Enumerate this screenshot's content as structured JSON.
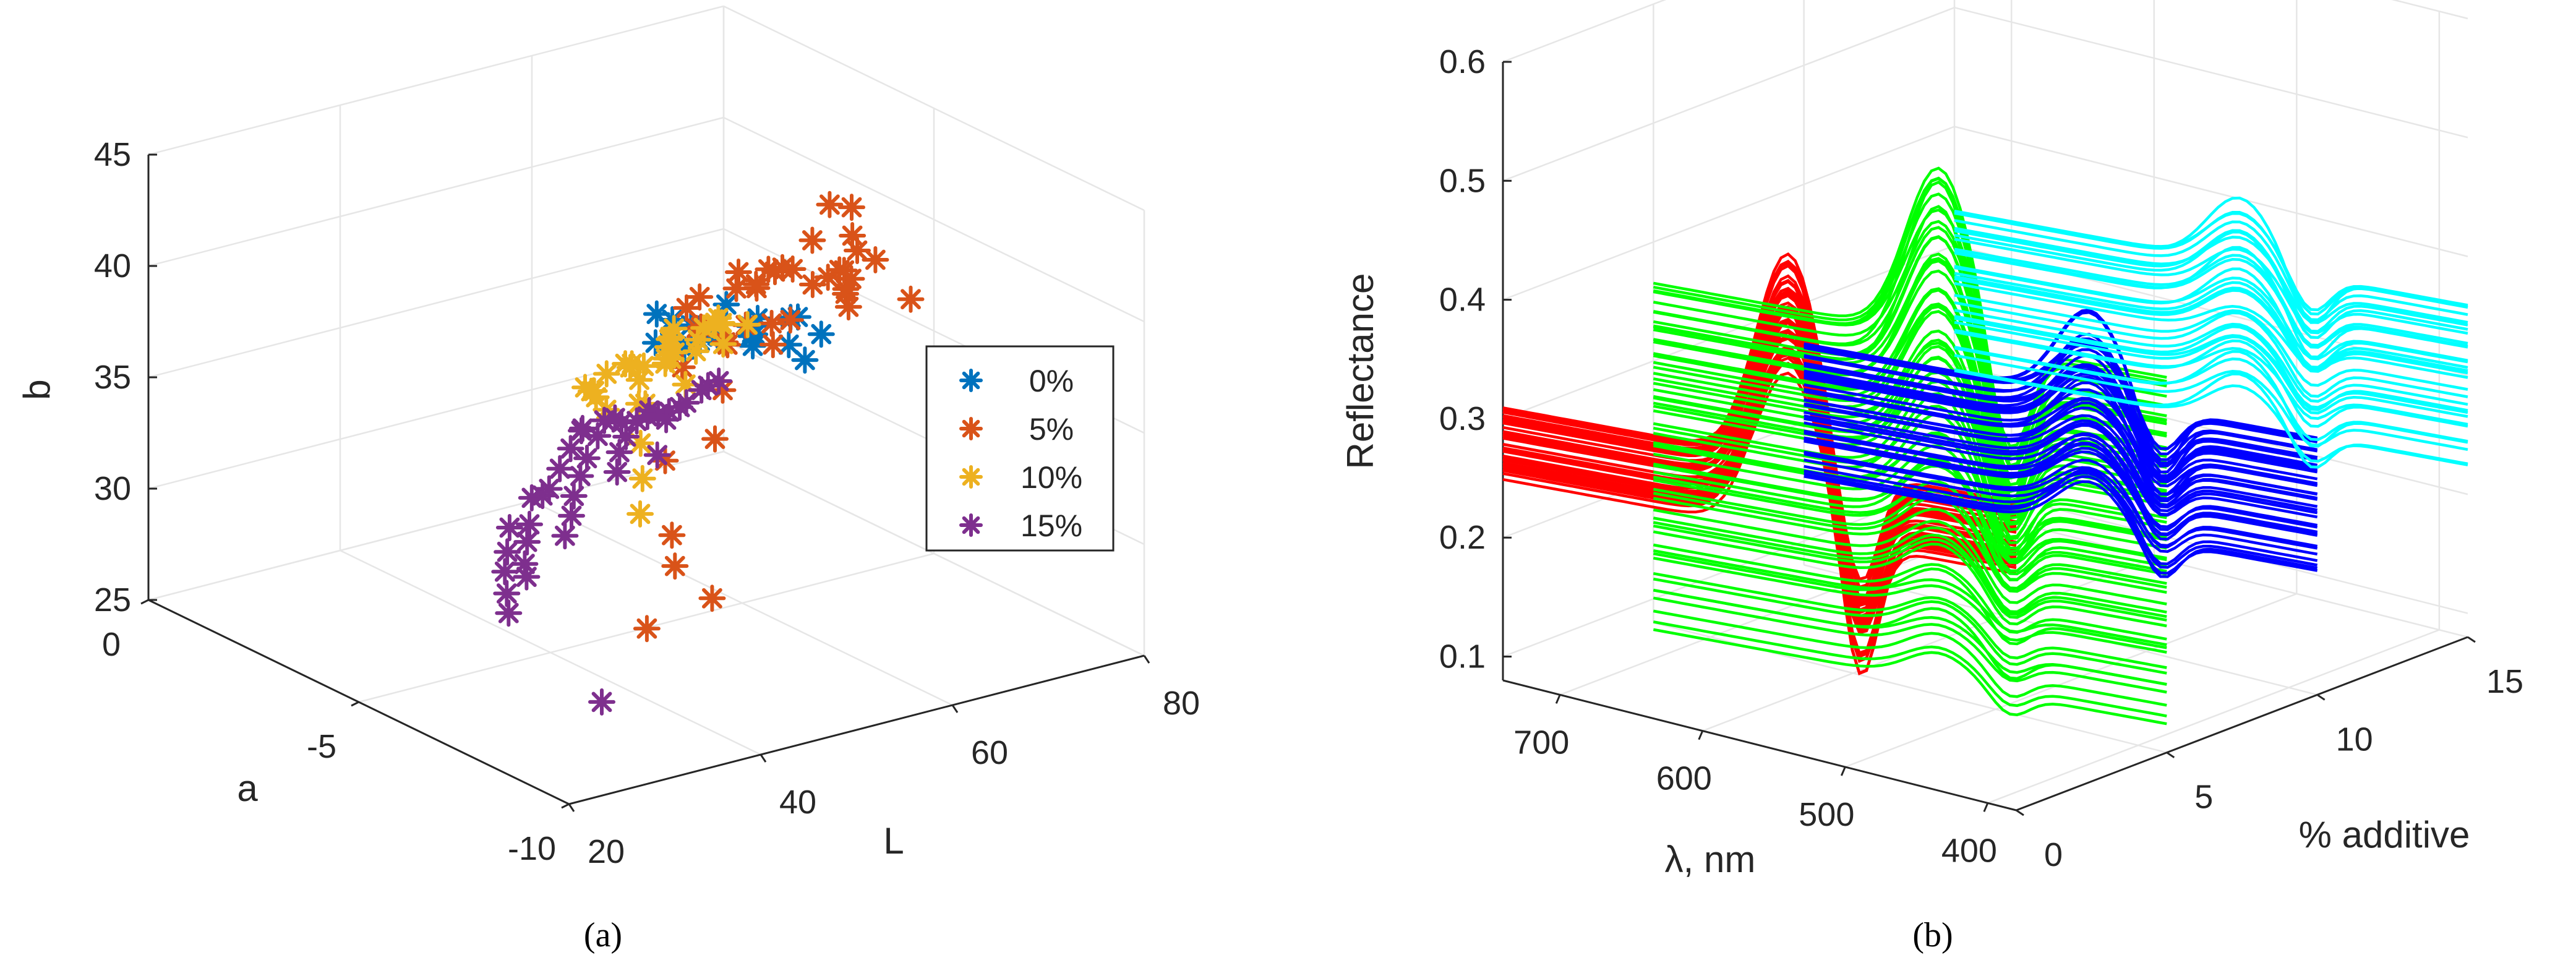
{
  "chart_data": [
    {
      "panel": "(a)",
      "type": "scatter3d",
      "xlabel": "L",
      "ylabel": "a",
      "zlabel": "b",
      "xlim": [
        20,
        80
      ],
      "ylim": [
        -10,
        0
      ],
      "zlim": [
        25,
        45
      ],
      "xticks": [
        "20",
        "40",
        "60",
        "80"
      ],
      "yticks": [
        "-10",
        "-5",
        "0"
      ],
      "zticks": [
        "25",
        "30",
        "35",
        "40",
        "45"
      ],
      "legend": {
        "position": "right-center",
        "entries": [
          "0%",
          "5%",
          "10%",
          "15%"
        ]
      },
      "series": [
        {
          "name": "0%",
          "color": "#0072BD",
          "points": [
            [
              64,
              -3.5,
              35.2
            ],
            [
              66,
              -3,
              34.8
            ],
            [
              68,
              -2.8,
              35.5
            ],
            [
              63,
              -2.6,
              34.2
            ],
            [
              67,
              -2.4,
              33.6
            ],
            [
              65,
              -2.2,
              34.6
            ],
            [
              62,
              -3.8,
              35.8
            ],
            [
              69,
              -3.2,
              33.9
            ],
            [
              70,
              -2.9,
              34.4
            ],
            [
              66,
              -4,
              36.2
            ],
            [
              64,
              -4.3,
              35.9
            ],
            [
              68,
              -4.5,
              36.5
            ],
            [
              71,
              -3.6,
              34.1
            ],
            [
              67,
              -3.7,
              35.1
            ],
            [
              63,
              -3.1,
              35.4
            ],
            [
              65,
              -1.8,
              33.2
            ],
            [
              72,
              -2.5,
              33.5
            ],
            [
              66,
              -1.6,
              34.2
            ],
            [
              69,
              -4.1,
              36
            ],
            [
              74,
              -3.3,
              32.8
            ],
            [
              70,
              -4.6,
              35.6
            ],
            [
              61,
              -3.4,
              34.8
            ]
          ]
        },
        {
          "name": "5%",
          "color": "#D95319",
          "points": [
            [
              55,
              -6,
              40.6
            ],
            [
              58,
              -5.8,
              40.1
            ],
            [
              60,
              -6.2,
              41.1
            ],
            [
              62,
              -5.5,
              40.3
            ],
            [
              66,
              -5.3,
              40.9
            ],
            [
              70,
              -4.8,
              41.6
            ],
            [
              64,
              -6.4,
              40.8
            ],
            [
              58,
              -6.6,
              39.4
            ],
            [
              56,
              -4.9,
              39.1
            ],
            [
              61,
              -5.1,
              39.3
            ],
            [
              67,
              -6,
              39.7
            ],
            [
              72,
              -5,
              39.5
            ],
            [
              75,
              -4.2,
              39.1
            ],
            [
              78,
              -3.5,
              39.4
            ],
            [
              62,
              -7,
              40.5
            ],
            [
              64,
              -4,
              38.5
            ],
            [
              68,
              -3.8,
              38
            ],
            [
              70,
              -3.5,
              37.4
            ],
            [
              73,
              -4.5,
              37.2
            ],
            [
              77,
              -2.8,
              35.4
            ],
            [
              52,
              -5.5,
              39.6
            ],
            [
              50,
              -6.3,
              39.7
            ],
            [
              47,
              -7.5,
              38.3
            ],
            [
              44,
              -8,
              36.9
            ],
            [
              41,
              -7.5,
              35.8
            ],
            [
              36,
              -8.8,
              34.2
            ],
            [
              35,
              -9.1,
              33.2
            ],
            [
              29,
              -9.8,
              31.7
            ],
            [
              38,
              -9.3,
              31.6
            ],
            [
              69,
              -2.6,
              33.4
            ],
            [
              67,
              -3,
              34.1
            ],
            [
              63,
              -4.4,
              36.6
            ],
            [
              59,
              -3.8,
              34.6
            ],
            [
              60,
              -5.7,
              38.2
            ],
            [
              57,
              -4.6,
              37.3
            ],
            [
              66,
              -6.8,
              41.4
            ],
            [
              61,
              -7.3,
              40.3
            ],
            [
              54,
              -7.1,
              39.2
            ],
            [
              71,
              -6.5,
              38.8
            ],
            [
              65,
              -5.9,
              39.9
            ],
            [
              68,
              -5.6,
              39.6
            ]
          ]
        },
        {
          "name": "10%",
          "color": "#EDB120",
          "points": [
            [
              48,
              -6,
              39.1
            ],
            [
              50,
              -5.6,
              38.6
            ],
            [
              52,
              -5.2,
              38.4
            ],
            [
              54,
              -5.8,
              39.2
            ],
            [
              56,
              -5,
              37.8
            ],
            [
              58,
              -4.8,
              37.5
            ],
            [
              46,
              -6.5,
              38.9
            ],
            [
              44,
              -6.2,
              37.9
            ],
            [
              42,
              -6.8,
              37.6
            ],
            [
              40,
              -7.1,
              38.1
            ],
            [
              38,
              -7.6,
              37
            ],
            [
              36,
              -8.1,
              36.1
            ],
            [
              34,
              -8.5,
              35.1
            ],
            [
              50,
              -4.5,
              36.4
            ],
            [
              52,
              -4.2,
              35.9
            ],
            [
              54,
              -4.6,
              36.8
            ],
            [
              56,
              -4.1,
              35.6
            ],
            [
              58,
              -4.4,
              36.5
            ],
            [
              60,
              -3.9,
              35.3
            ],
            [
              47,
              -5.3,
              37.3
            ],
            [
              49,
              -5.9,
              38.3
            ],
            [
              51,
              -6.6,
              39.1
            ],
            [
              53,
              -6.1,
              39.3
            ],
            [
              55,
              -5.5,
              38.6
            ],
            [
              57,
              -5.2,
              38.1
            ],
            [
              45,
              -4.9,
              36.1
            ],
            [
              43,
              -5.4,
              36.5
            ],
            [
              41,
              -6.1,
              36.8
            ],
            [
              48,
              -4,
              35.1
            ],
            [
              46,
              -4.6,
              35.7
            ],
            [
              52,
              -3.6,
              34.9
            ],
            [
              55,
              -3.8,
              35.1
            ],
            [
              59,
              -3.4,
              34.4
            ],
            [
              44,
              -7.3,
              38.7
            ],
            [
              61,
              -4.9,
              37.3
            ]
          ]
        },
        {
          "name": "15%",
          "color": "#7E2F8E",
          "points": [
            [
              50,
              -4,
              33.4
            ],
            [
              52,
              -3.8,
              33.1
            ],
            [
              54,
              -3.5,
              32.4
            ],
            [
              56,
              -3.7,
              32.9
            ],
            [
              48,
              -4.3,
              33.2
            ],
            [
              46,
              -4.5,
              32.6
            ],
            [
              44,
              -4.8,
              32.3
            ],
            [
              42,
              -5.1,
              31.9
            ],
            [
              40,
              -5.5,
              31.6
            ],
            [
              38,
              -5.8,
              31.2
            ],
            [
              47,
              -5.2,
              34.1
            ],
            [
              45,
              -5.5,
              33.9
            ],
            [
              43,
              -5.9,
              33.6
            ],
            [
              49,
              -5,
              34.4
            ],
            [
              51,
              -4.8,
              34.2
            ],
            [
              53,
              -4.6,
              33.9
            ],
            [
              55,
              -4.4,
              33.6
            ],
            [
              57,
              -4.2,
              33.4
            ],
            [
              59,
              -3.9,
              33.1
            ],
            [
              42,
              -4.1,
              30.9
            ],
            [
              44,
              -3.9,
              30.6
            ],
            [
              46,
              -3.6,
              30.4
            ],
            [
              48,
              -3.4,
              30.9
            ],
            [
              50,
              -3.2,
              31.4
            ],
            [
              52,
              -3,
              31.8
            ],
            [
              40,
              -4.5,
              30.3
            ],
            [
              38,
              -4.9,
              30.1
            ],
            [
              36,
              -5.3,
              29.7
            ],
            [
              34,
              -5.8,
              29.8
            ],
            [
              41,
              -3.8,
              29.4
            ],
            [
              39,
              -4.2,
              28.9
            ],
            [
              37,
              -4.6,
              28.6
            ],
            [
              35,
              -5.1,
              28.3
            ],
            [
              33,
              -5.6,
              28.1
            ],
            [
              56,
              -5.1,
              35.3
            ],
            [
              58,
              -4.9,
              35.1
            ],
            [
              54,
              -5.4,
              35.6
            ],
            [
              30,
              -8.5,
              27.1
            ],
            [
              45,
              -6.4,
              34.6
            ],
            [
              49,
              -5.7,
              35.1
            ],
            [
              53,
              -2.8,
              31.6
            ]
          ]
        }
      ]
    },
    {
      "panel": "(b)",
      "type": "line3d-waterfall",
      "xlabel": "λ, nm",
      "ylabel": "% additive",
      "zlabel": "Reflectance",
      "xlim": [
        380,
        740
      ],
      "ylim": [
        0,
        15
      ],
      "zlim": [
        0.08,
        0.6
      ],
      "xticks": [
        "700",
        "600",
        "500",
        "400"
      ],
      "yticks": [
        "0",
        "5",
        "10",
        "15"
      ],
      "zticks": [
        "0.1",
        "0.2",
        "0.3",
        "0.4",
        "0.5",
        "0.6"
      ],
      "series": [
        {
          "name": "0%",
          "additive": 0,
          "color": "#FF0000",
          "count": 40,
          "base_range": [
            0.28,
            0.34
          ],
          "peak_range": [
            0.43,
            0.49
          ]
        },
        {
          "name": "5%",
          "additive": 5,
          "color": "#00FF00",
          "count": 60,
          "base_range": [
            0.1,
            0.4
          ],
          "peak_range": [
            0.13,
            0.55
          ]
        },
        {
          "name": "10%",
          "additive": 10,
          "color": "#0000FF",
          "count": 40,
          "base_range": [
            0.18,
            0.3
          ],
          "peak_range": [
            0.22,
            0.36
          ]
        },
        {
          "name": "15%",
          "additive": 15,
          "color": "#00FFFF",
          "count": 30,
          "base_range": [
            0.22,
            0.36
          ],
          "peak_range": [
            0.26,
            0.41
          ]
        }
      ]
    }
  ],
  "captions": {
    "a": "(a)",
    "b": "(b)"
  }
}
